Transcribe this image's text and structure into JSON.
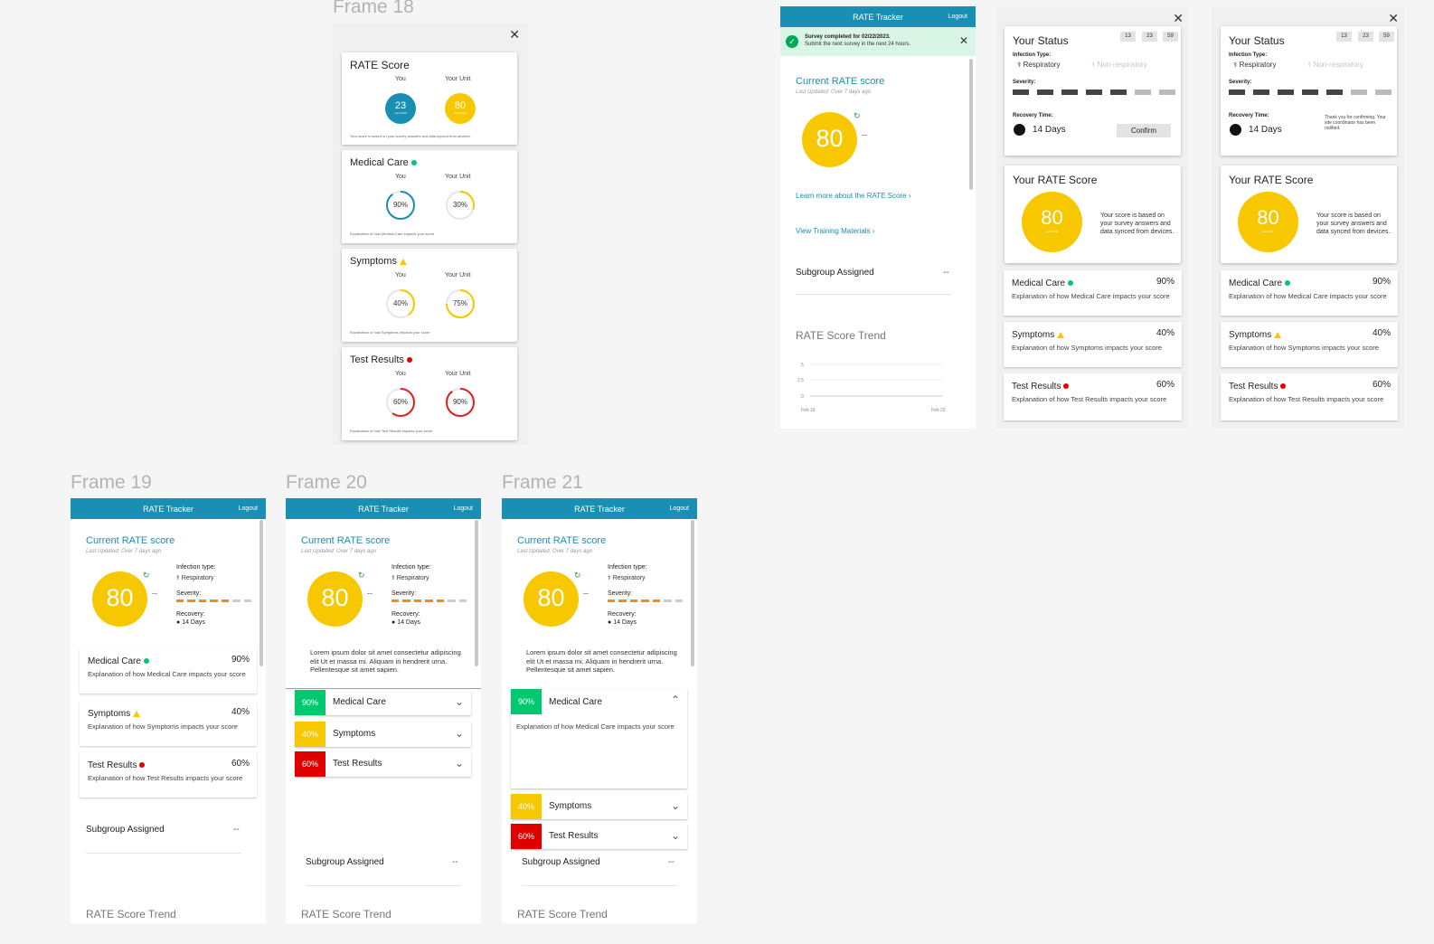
{
  "frames": {
    "f18": "Frame 18",
    "f19": "Frame 19",
    "f20": "Frame 20",
    "f21": "Frame 21"
  },
  "common": {
    "app_title": "RATE Tracker",
    "logout": "Logout",
    "current_score": "Current RATE score",
    "last_updated": "Last Updated: Over 7 days ago",
    "score": "80",
    "score_dash": "--",
    "out_of": "out of 100",
    "infection_type_label": "Infection type:",
    "respiratory": "Respiratory",
    "severity_label": "Severity:",
    "recovery_label": "Recovery:",
    "recovery_days": "14 Days",
    "subgroup": "Subgroup Assigned",
    "subgroup_value": "--",
    "trend": "RATE Score Trend",
    "lorem": "Lorem ipsum dolor sit amet consectetur adipiscing elit Ut et massa mi. Aliquam in hendrerit urna. Pellentesque sit amet sapien."
  },
  "f18": {
    "rate_title": "RATE Score",
    "you": "You",
    "your_unit": "Your Unit",
    "you_score": "23",
    "unit_score": "80",
    "out_of": "out of 100",
    "rate_note": "Your score is based on your survey answers and data synced from devices.",
    "sections": [
      {
        "title": "Medical Care",
        "you": "90%",
        "unit": "30%",
        "note": "Explanation of how Medical Care impacts your score",
        "you_frac": 0.9,
        "unit_frac": 0.3,
        "color": "#1a8fb4",
        "unit_color": "#f7c800"
      },
      {
        "title": "Symptoms",
        "you": "40%",
        "unit": "75%",
        "note": "Explanation of how Symptoms impacts your score",
        "you_frac": 0.4,
        "unit_frac": 0.75,
        "color": "#f7c800",
        "unit_color": "#f7c800"
      },
      {
        "title": "Test Results",
        "you": "60%",
        "unit": "90%",
        "note": "Explanation of how Test Results impacts your score",
        "you_frac": 0.6,
        "unit_frac": 0.9,
        "color": "#e02020",
        "unit_color": "#e02020"
      }
    ]
  },
  "top": {
    "survey_title": "Survey completed for 02/22/2023.",
    "survey_sub": "Submit the next survey in the next 24 hours.",
    "learn_more": "Learn more about the RATE Score",
    "training": "View Training Materials",
    "y_ticks": [
      "5",
      "2.5",
      "0"
    ],
    "x_ticks": [
      "Feb 16",
      "Feb 23"
    ]
  },
  "status": {
    "title": "Your Status",
    "timer": [
      "13",
      "23",
      "59"
    ],
    "infection_type": "Infection Type:",
    "respiratory": "Respiratory",
    "non_respiratory": "Non-respiratory",
    "severity": "Severity:",
    "recovery_time": "Recovery Time:",
    "days": "14 Days",
    "confirm": "Confirm",
    "thanks": "Thank you for confirming. Your site coordinator has been notified.",
    "rate_title": "Your RATE Score",
    "score": "80",
    "out_of": "out of 100",
    "score_note": "Your score is based on your survey answers and data synced from devices."
  },
  "components": [
    {
      "name": "Medical Care",
      "pct": "90%",
      "desc": "Explanation of how Medical Care impacts your score",
      "color": "#00c86e"
    },
    {
      "name": "Symptoms",
      "pct": "40%",
      "desc": "Explanation of how Symptoms impacts your score",
      "color": "#f7c800"
    },
    {
      "name": "Test Results",
      "pct": "60%",
      "desc": "Explanation of how Test Results impacts your score",
      "color": "#e00000"
    }
  ],
  "colors": {
    "accent": "#1a8fb4",
    "yellow": "#f7c800",
    "green": "#00c86e",
    "red": "#e00000",
    "orange": "#f28c1a"
  }
}
